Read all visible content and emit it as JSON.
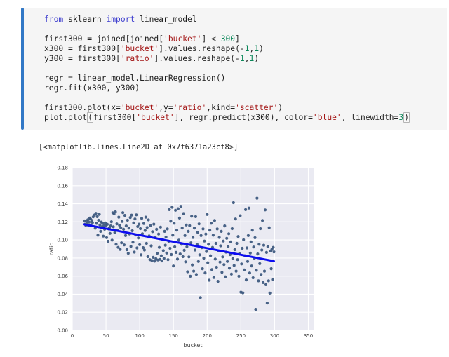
{
  "notebook": {
    "accent_color": "#3178c6",
    "cell_background": "#f5f5f5",
    "syntax_colors": {
      "keyword": "#3b3bce",
      "string": "#a31515",
      "number": "#098658",
      "plain": "#1f1f1f"
    },
    "code": {
      "lines": [
        [
          [
            "from",
            "kw"
          ],
          [
            " sklearn ",
            "pl"
          ],
          [
            "import",
            "kw"
          ],
          [
            " linear_model",
            "pl"
          ]
        ],
        [],
        [
          [
            "first300 = joined[joined[",
            "pl"
          ],
          [
            "'bucket'",
            "str"
          ],
          [
            "] < ",
            "pl"
          ],
          [
            "300",
            "num"
          ],
          [
            "]",
            "pl"
          ]
        ],
        [
          [
            "x300 = first300[",
            "pl"
          ],
          [
            "'bucket'",
            "str"
          ],
          [
            "].values.reshape(-",
            "pl"
          ],
          [
            "1",
            "num"
          ],
          [
            ",",
            "pl"
          ],
          [
            "1",
            "num"
          ],
          [
            ")",
            "pl"
          ]
        ],
        [
          [
            "y300 = first300[",
            "pl"
          ],
          [
            "'ratio'",
            "str"
          ],
          [
            "].values.reshape(-",
            "pl"
          ],
          [
            "1",
            "num"
          ],
          [
            ",",
            "pl"
          ],
          [
            "1",
            "num"
          ],
          [
            ")",
            "pl"
          ]
        ],
        [],
        [
          [
            "regr = linear_model.LinearRegression()",
            "pl"
          ]
        ],
        [
          [
            "regr.fit(x300, y300)",
            "pl"
          ]
        ],
        [],
        [
          [
            "first300.plot(x=",
            "pl"
          ],
          [
            "'bucket'",
            "str"
          ],
          [
            ",y=",
            "pl"
          ],
          [
            "'ratio'",
            "str"
          ],
          [
            ",kind=",
            "pl"
          ],
          [
            "'scatter'",
            "str"
          ],
          [
            ")",
            "pl"
          ]
        ],
        [
          [
            "plot.plot",
            "pl"
          ],
          [
            "(",
            "bm"
          ],
          [
            "first300[",
            "pl"
          ],
          [
            "'bucket'",
            "str"
          ],
          [
            "], regr.predict(x300), color=",
            "pl"
          ],
          [
            "'blue'",
            "str"
          ],
          [
            ", linewidth=",
            "pl"
          ],
          [
            "3",
            "num"
          ],
          [
            ")",
            "bm"
          ]
        ]
      ]
    },
    "output_text": "[<matplotlib.lines.Line2D at 0x7f6371a23cf8>]"
  },
  "chart_data": {
    "type": "scatter",
    "title": "",
    "xlabel": "bucket",
    "ylabel": "ratio",
    "xlim": [
      0,
      357.8
    ],
    "ylim": [
      0,
      0.18
    ],
    "xticks": [
      0,
      50,
      100,
      150,
      200,
      250,
      300,
      350
    ],
    "yticks": [
      "0.00",
      "0.02",
      "0.04",
      "0.06",
      "0.08",
      "0.10",
      "0.12",
      "0.14",
      "0.16",
      "0.18"
    ],
    "grid": true,
    "legend": false,
    "axes_background": "#eaeaf2",
    "grid_color": "#ffffff",
    "tick_color": "#3d3d3d",
    "point_color": "#3a567d",
    "line_color": "#0d0df0",
    "regression_line": {
      "x0": 18,
      "y0": 0.1172,
      "x1": 299,
      "y1": 0.0765,
      "color": "blue",
      "linewidth": 3
    },
    "points": [
      [
        18,
        0.121
      ],
      [
        19,
        0.1175
      ],
      [
        20,
        0.1162
      ],
      [
        21,
        0.1208
      ],
      [
        22,
        0.1185
      ],
      [
        23,
        0.1223
      ],
      [
        24,
        0.116
      ],
      [
        25,
        0.1198
      ],
      [
        26,
        0.1242
      ],
      [
        27,
        0.1232
      ],
      [
        28,
        0.1158
      ],
      [
        29,
        0.1215
      ],
      [
        30,
        0.1192
      ],
      [
        31,
        0.1255
      ],
      [
        33,
        0.1276
      ],
      [
        34,
        0.113
      ],
      [
        35,
        0.1294
      ],
      [
        36,
        0.1184
      ],
      [
        37,
        0.1258
      ],
      [
        38,
        0.1052
      ],
      [
        39,
        0.1218
      ],
      [
        40,
        0.1283
      ],
      [
        41,
        0.1166
      ],
      [
        42,
        0.1095
      ],
      [
        43,
        0.1198
      ],
      [
        44,
        0.1145
      ],
      [
        45,
        0.1187
      ],
      [
        46,
        0.1042
      ],
      [
        47,
        0.1162
      ],
      [
        48,
        0.1118
      ],
      [
        49,
        0.1188
      ],
      [
        50,
        0.116
      ],
      [
        51,
        0.1026
      ],
      [
        52,
        0.1173
      ],
      [
        53,
        0.0985
      ],
      [
        54,
        0.1122
      ],
      [
        55,
        0.1134
      ],
      [
        56,
        0.1072
      ],
      [
        57,
        0.1155
      ],
      [
        58,
        0.1201
      ],
      [
        59,
        0.0998
      ],
      [
        60,
        0.1301
      ],
      [
        61,
        0.1145
      ],
      [
        62,
        0.1288
      ],
      [
        63,
        0.1082
      ],
      [
        64,
        0.1311
      ],
      [
        65,
        0.0952
      ],
      [
        66,
        0.1178
      ],
      [
        67,
        0.1108
      ],
      [
        68,
        0.0918
      ],
      [
        69,
        0.1252
      ],
      [
        70,
        0.1162
      ],
      [
        71,
        0.0895
      ],
      [
        72,
        0.1135
      ],
      [
        73,
        0.0968
      ],
      [
        74,
        0.1205
      ],
      [
        75,
        0.1302
      ],
      [
        76,
        0.1118
      ],
      [
        77,
        0.0945
      ],
      [
        78,
        0.1272
      ],
      [
        79,
        0.1048
      ],
      [
        80,
        0.1155
      ],
      [
        81,
        0.0892
      ],
      [
        82,
        0.1218
      ],
      [
        83,
        0.0852
      ],
      [
        84,
        0.1132
      ],
      [
        85,
        0.1065
      ],
      [
        86,
        0.1248
      ],
      [
        87,
        0.0928
      ],
      [
        88,
        0.1275
      ],
      [
        89,
        0.1102
      ],
      [
        90,
        0.0975
      ],
      [
        91,
        0.1188
      ],
      [
        92,
        0.0865
      ],
      [
        93,
        0.1232
      ],
      [
        94,
        0.1055
      ],
      [
        95,
        0.1278
      ],
      [
        96,
        0.0912
      ],
      [
        97,
        0.1148
      ],
      [
        98,
        0.1022
      ],
      [
        99,
        0.1175
      ],
      [
        100,
        0.0948
      ],
      [
        101,
        0.1125
      ],
      [
        102,
        0.0835
      ],
      [
        103,
        0.1238
      ],
      [
        104,
        0.1068
      ],
      [
        105,
        0.0915
      ],
      [
        106,
        0.1182
      ],
      [
        107,
        0.0888
      ],
      [
        108,
        0.1105
      ],
      [
        109,
        0.1252
      ],
      [
        110,
        0.0962
      ],
      [
        111,
        0.1138
      ],
      [
        112,
        0.0815
      ],
      [
        113,
        0.1222
      ],
      [
        114,
        0.1045
      ],
      [
        115,
        0.0782
      ],
      [
        116,
        0.1158
      ],
      [
        117,
        0.0935
      ],
      [
        118,
        0.0772
      ],
      [
        119,
        0.1092
      ],
      [
        120,
        0.0808
      ],
      [
        121,
        0.1175
      ],
      [
        122,
        0.0765
      ],
      [
        123,
        0.1028
      ],
      [
        124,
        0.0792
      ],
      [
        125,
        0.1118
      ],
      [
        126,
        0.0852
      ],
      [
        127,
        0.0778
      ],
      [
        128,
        0.1065
      ],
      [
        129,
        0.0918
      ],
      [
        130,
        0.0785
      ],
      [
        131,
        0.1142
      ],
      [
        132,
        0.0825
      ],
      [
        133,
        0.0768
      ],
      [
        134,
        0.1005
      ],
      [
        135,
        0.0882
      ],
      [
        136,
        0.0795
      ],
      [
        137,
        0.1095
      ],
      [
        138,
        0.0942
      ],
      [
        139,
        0.1032
      ],
      [
        140,
        0.0855
      ],
      [
        141,
        0.1122
      ],
      [
        142,
        0.0782
      ],
      [
        143,
        0.0985
      ],
      [
        144,
        0.1335
      ],
      [
        145,
        0.0908
      ],
      [
        146,
        0.1208
      ],
      [
        147,
        0.0838
      ],
      [
        148,
        0.1362
      ],
      [
        149,
        0.1052
      ],
      [
        150,
        0.0712
      ],
      [
        151,
        0.1185
      ],
      [
        152,
        0.0925
      ],
      [
        153,
        0.1328
      ],
      [
        154,
        0.0862
      ],
      [
        155,
        0.1108
      ],
      [
        156,
        0.0788
      ],
      [
        157,
        0.1345
      ],
      [
        158,
        0.0998
      ],
      [
        159,
        0.1242
      ],
      [
        160,
        0.0845
      ],
      [
        161,
        0.1372
      ],
      [
        162,
        0.0952
      ],
      [
        163,
        0.1132
      ],
      [
        164,
        0.0815
      ],
      [
        165,
        0.1292
      ],
      [
        166,
        0.0885
      ],
      [
        167,
        0.1048
      ],
      [
        168,
        0.0758
      ],
      [
        169,
        0.1165
      ],
      [
        170,
        0.0925
      ],
      [
        171,
        0.0648
      ],
      [
        172,
        0.1095
      ],
      [
        173,
        0.0812
      ],
      [
        174,
        0.1158
      ],
      [
        175,
        0.0598
      ],
      [
        176,
        0.0968
      ],
      [
        177,
        0.1262
      ],
      [
        178,
        0.0725
      ],
      [
        179,
        0.1028
      ],
      [
        180,
        0.0655
      ],
      [
        181,
        0.1132
      ],
      [
        182,
        0.0888
      ],
      [
        183,
        0.1258
      ],
      [
        184,
        0.0618
      ],
      [
        185,
        0.0952
      ],
      [
        186,
        0.1085
      ],
      [
        187,
        0.0762
      ],
      [
        188,
        0.1178
      ],
      [
        189,
        0.0835
      ],
      [
        190,
        0.0362
      ],
      [
        191,
        0.1048
      ],
      [
        192,
        0.0915
      ],
      [
        193,
        0.0682
      ],
      [
        194,
        0.1122
      ],
      [
        195,
        0.0798
      ],
      [
        196,
        0.0988
      ],
      [
        197,
        0.0635
      ],
      [
        198,
        0.1065
      ],
      [
        199,
        0.0872
      ],
      [
        200,
        0.1282
      ],
      [
        201,
        0.0748
      ],
      [
        202,
        0.0952
      ],
      [
        203,
        0.0555
      ],
      [
        204,
        0.1108
      ],
      [
        205,
        0.0825
      ],
      [
        206,
        0.1185
      ],
      [
        207,
        0.0672
      ],
      [
        208,
        0.0918
      ],
      [
        209,
        0.1052
      ],
      [
        210,
        0.0585
      ],
      [
        211,
        0.1215
      ],
      [
        212,
        0.0788
      ],
      [
        213,
        0.0962
      ],
      [
        214,
        0.0698
      ],
      [
        215,
        0.1122
      ],
      [
        216,
        0.0542
      ],
      [
        217,
        0.0878
      ],
      [
        218,
        0.1028
      ],
      [
        219,
        0.0755
      ],
      [
        220,
        0.0935
      ],
      [
        221,
        0.1095
      ],
      [
        222,
        0.0642
      ],
      [
        223,
        0.0812
      ],
      [
        224,
        0.0988
      ],
      [
        225,
        0.0728
      ],
      [
        226,
        0.1155
      ],
      [
        227,
        0.0592
      ],
      [
        228,
        0.0865
      ],
      [
        229,
        0.1018
      ],
      [
        230,
        0.0762
      ],
      [
        231,
        0.0925
      ],
      [
        232,
        0.1068
      ],
      [
        233,
        0.0688
      ],
      [
        234,
        0.0838
      ],
      [
        235,
        0.0978
      ],
      [
        236,
        0.0622
      ],
      [
        237,
        0.1125
      ],
      [
        238,
        0.0795
      ],
      [
        239,
        0.1412
      ],
      [
        240,
        0.0718
      ],
      [
        241,
        0.0892
      ],
      [
        242,
        0.1232
      ],
      [
        243,
        0.0655
      ],
      [
        244,
        0.0962
      ],
      [
        245,
        0.0782
      ],
      [
        246,
        0.1038
      ],
      [
        247,
        0.0598
      ],
      [
        248,
        0.0848
      ],
      [
        249,
        0.1268
      ],
      [
        250,
        0.0422
      ],
      [
        251,
        0.0735
      ],
      [
        252,
        0.0908
      ],
      [
        253,
        0.0415
      ],
      [
        254,
        0.1002
      ],
      [
        255,
        0.0668
      ],
      [
        256,
        0.0825
      ],
      [
        257,
        0.1335
      ],
      [
        258,
        0.0558
      ],
      [
        259,
        0.0912
      ],
      [
        260,
        0.0762
      ],
      [
        261,
        0.1048
      ],
      [
        262,
        0.1352
      ],
      [
        263,
        0.0635
      ],
      [
        264,
        0.0855
      ],
      [
        265,
        0.0978
      ],
      [
        266,
        0.0712
      ],
      [
        267,
        0.1108
      ],
      [
        268,
        0.0582
      ],
      [
        269,
        0.0922
      ],
      [
        270,
        0.0798
      ],
      [
        271,
        0.1025
      ],
      [
        272,
        0.0232
      ],
      [
        273,
        0.0665
      ],
      [
        274,
        0.1462
      ],
      [
        275,
        0.0845
      ],
      [
        276,
        0.0548
      ],
      [
        277,
        0.0952
      ],
      [
        278,
        0.0738
      ],
      [
        279,
        0.1125
      ],
      [
        280,
        0.0618
      ],
      [
        281,
        0.0888
      ],
      [
        282,
        0.1215
      ],
      [
        283,
        0.0528
      ],
      [
        284,
        0.0942
      ],
      [
        285,
        0.0655
      ],
      [
        286,
        0.1332
      ],
      [
        287,
        0.0505
      ],
      [
        288,
        0.0862
      ],
      [
        289,
        0.0302
      ],
      [
        290,
        0.0925
      ],
      [
        291,
        0.0548
      ],
      [
        292,
        0.1135
      ],
      [
        293,
        0.0412
      ],
      [
        294,
        0.0878
      ],
      [
        295,
        0.0682
      ],
      [
        296,
        0.0895
      ],
      [
        297,
        0.0562
      ],
      [
        298,
        0.0918
      ],
      [
        299,
        0.0868
      ]
    ]
  }
}
